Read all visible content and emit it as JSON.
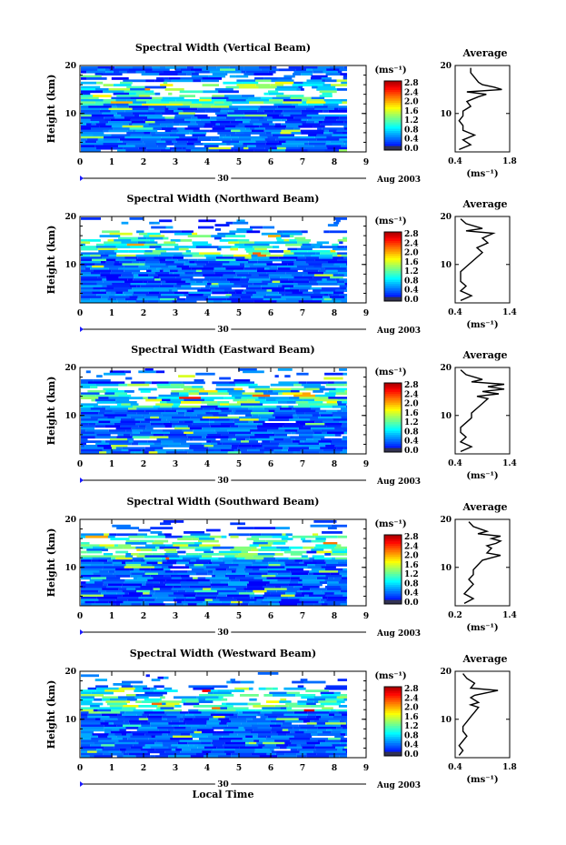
{
  "chart_data": [
    {
      "type": "heatmap",
      "title": "Spectral Width (Vertical Beam)",
      "ylabel": "Height (km)",
      "yticks": [
        "10",
        "20"
      ],
      "ylim": [
        2,
        20
      ],
      "xticks": [
        "0",
        "1",
        "2",
        "3",
        "4",
        "5",
        "6",
        "7",
        "8",
        "9"
      ],
      "xlim": [
        0,
        9
      ],
      "data_x_range": [
        0,
        8.4
      ],
      "date_day": "30",
      "date_month_year": "Aug 2003",
      "colorbar": {
        "label": "(ms⁻¹)",
        "ticks": [
          "0.0",
          "0.4",
          "0.8",
          "1.2",
          "1.6",
          "2.0",
          "2.4",
          "2.8"
        ],
        "range": [
          0,
          2.8
        ]
      },
      "average": {
        "title": "Average",
        "xlabel": "(ms⁻¹)",
        "xticks": [
          "0.4",
          "1.8"
        ],
        "xlim": [
          0.4,
          1.8
        ],
        "yticks": [
          "10",
          "20"
        ],
        "profile": [
          [
            0.5,
            2.5
          ],
          [
            0.8,
            3.5
          ],
          [
            0.6,
            4.5
          ],
          [
            0.9,
            5.5
          ],
          [
            0.6,
            6.5
          ],
          [
            0.6,
            7.5
          ],
          [
            0.5,
            8.5
          ],
          [
            0.6,
            9.5
          ],
          [
            0.6,
            10.5
          ],
          [
            0.8,
            11.5
          ],
          [
            0.7,
            12.5
          ],
          [
            1.0,
            13.5
          ],
          [
            1.2,
            14
          ],
          [
            0.7,
            14.5
          ],
          [
            1.6,
            15
          ],
          [
            1.4,
            15.5
          ],
          [
            1.1,
            16
          ],
          [
            1.0,
            16.5
          ],
          [
            0.9,
            17.5
          ],
          [
            0.8,
            18.5
          ],
          [
            0.8,
            19.5
          ]
        ]
      }
    },
    {
      "type": "heatmap",
      "title": "Spectral Width (Northward Beam)",
      "ylabel": "Height (km)",
      "yticks": [
        "10",
        "20"
      ],
      "ylim": [
        2,
        20
      ],
      "xticks": [
        "0",
        "1",
        "2",
        "3",
        "4",
        "5",
        "6",
        "7",
        "8",
        "9"
      ],
      "xlim": [
        0,
        9
      ],
      "data_x_range": [
        0,
        8.4
      ],
      "date_day": "30",
      "date_month_year": "Aug 2003",
      "colorbar": {
        "label": "(ms⁻¹)",
        "ticks": [
          "0.0",
          "0.4",
          "0.8",
          "1.2",
          "1.6",
          "2.0",
          "2.4",
          "2.8"
        ],
        "range": [
          0,
          2.8
        ]
      },
      "average": {
        "title": "Average",
        "xlabel": "(ms⁻¹)",
        "xticks": [
          "0.4",
          "1.4"
        ],
        "xlim": [
          0.4,
          1.4
        ],
        "yticks": [
          "10",
          "20"
        ],
        "profile": [
          [
            0.5,
            2.5
          ],
          [
            0.7,
            3.5
          ],
          [
            0.5,
            4.5
          ],
          [
            0.6,
            5.5
          ],
          [
            0.5,
            6.5
          ],
          [
            0.5,
            7.5
          ],
          [
            0.5,
            8.5
          ],
          [
            0.6,
            9.5
          ],
          [
            0.7,
            10.5
          ],
          [
            0.8,
            11.5
          ],
          [
            0.9,
            12.5
          ],
          [
            0.8,
            13.5
          ],
          [
            1.0,
            14.5
          ],
          [
            0.9,
            15.5
          ],
          [
            1.1,
            16.5
          ],
          [
            0.6,
            17
          ],
          [
            0.9,
            17.5
          ],
          [
            0.6,
            18.5
          ],
          [
            0.5,
            19.5
          ]
        ]
      }
    },
    {
      "type": "heatmap",
      "title": "Spectral Width (Eastward Beam)",
      "ylabel": "Height (km)",
      "yticks": [
        "10",
        "20"
      ],
      "ylim": [
        2,
        20
      ],
      "xticks": [
        "0",
        "1",
        "2",
        "3",
        "4",
        "5",
        "6",
        "7",
        "8",
        "9"
      ],
      "xlim": [
        0,
        9
      ],
      "data_x_range": [
        0,
        8.4
      ],
      "date_day": "30",
      "date_month_year": "Aug 2003",
      "colorbar": {
        "label": "(ms⁻¹)",
        "ticks": [
          "0.0",
          "0.4",
          "0.8",
          "1.2",
          "1.6",
          "2.0",
          "2.4",
          "2.8"
        ],
        "range": [
          0,
          2.8
        ]
      },
      "average": {
        "title": "Average",
        "xlabel": "(ms⁻¹)",
        "xticks": [
          "0.4",
          "1.4"
        ],
        "xlim": [
          0.4,
          1.4
        ],
        "yticks": [
          "10",
          "20"
        ],
        "profile": [
          [
            0.5,
            2.5
          ],
          [
            0.7,
            3.5
          ],
          [
            0.5,
            4.5
          ],
          [
            0.6,
            5.5
          ],
          [
            0.5,
            6.5
          ],
          [
            0.5,
            7.5
          ],
          [
            0.6,
            8.5
          ],
          [
            0.7,
            9.5
          ],
          [
            0.7,
            10.5
          ],
          [
            0.8,
            11.5
          ],
          [
            0.9,
            12.5
          ],
          [
            1.0,
            13.5
          ],
          [
            0.8,
            14
          ],
          [
            1.2,
            14.5
          ],
          [
            0.9,
            15
          ],
          [
            1.3,
            15.5
          ],
          [
            1.0,
            16
          ],
          [
            1.3,
            16.5
          ],
          [
            0.7,
            17
          ],
          [
            0.9,
            17.5
          ],
          [
            0.6,
            18.5
          ],
          [
            0.5,
            19.5
          ]
        ]
      }
    },
    {
      "type": "heatmap",
      "title": "Spectral Width (Southward Beam)",
      "ylabel": "Height (km)",
      "yticks": [
        "10",
        "20"
      ],
      "ylim": [
        2,
        20
      ],
      "xticks": [
        "0",
        "1",
        "2",
        "3",
        "4",
        "5",
        "6",
        "7",
        "8",
        "9"
      ],
      "xlim": [
        0,
        9
      ],
      "data_x_range": [
        0,
        8.4
      ],
      "date_day": "30",
      "date_month_year": "Aug 2003",
      "colorbar": {
        "label": "(ms⁻¹)",
        "ticks": [
          "0.0",
          "0.4",
          "0.8",
          "1.2",
          "1.6",
          "2.0",
          "2.4",
          "2.8"
        ],
        "range": [
          0,
          2.8
        ]
      },
      "average": {
        "title": "Average",
        "xlabel": "(ms⁻¹)",
        "xticks": [
          "0.2",
          "1.4"
        ],
        "xlim": [
          0.2,
          1.4
        ],
        "yticks": [
          "10",
          "20"
        ],
        "profile": [
          [
            0.4,
            2.5
          ],
          [
            0.6,
            3.5
          ],
          [
            0.4,
            4.5
          ],
          [
            0.5,
            5.5
          ],
          [
            0.6,
            6.5
          ],
          [
            0.5,
            7.5
          ],
          [
            0.6,
            8.5
          ],
          [
            0.6,
            9.5
          ],
          [
            0.7,
            10.5
          ],
          [
            0.8,
            11.5
          ],
          [
            1.0,
            12
          ],
          [
            1.2,
            12.5
          ],
          [
            0.9,
            13
          ],
          [
            1.0,
            14
          ],
          [
            0.9,
            14.5
          ],
          [
            1.1,
            15
          ],
          [
            1.2,
            15.5
          ],
          [
            1.0,
            16
          ],
          [
            1.2,
            16.5
          ],
          [
            0.7,
            17
          ],
          [
            0.9,
            17.5
          ],
          [
            0.6,
            18.5
          ],
          [
            0.5,
            19.5
          ]
        ]
      }
    },
    {
      "type": "heatmap",
      "title": "Spectral Width (Westward Beam)",
      "ylabel": "Height (km)",
      "yticks": [
        "10",
        "20"
      ],
      "ylim": [
        2,
        20
      ],
      "xticks": [
        "0",
        "1",
        "2",
        "3",
        "4",
        "5",
        "6",
        "7",
        "8",
        "9"
      ],
      "xlim": [
        0,
        9
      ],
      "data_x_range": [
        0,
        8.4
      ],
      "date_day": "30",
      "date_month_year": "Aug 2003",
      "xlabel": "Local Time",
      "colorbar": {
        "label": "(ms⁻¹)",
        "ticks": [
          "0.0",
          "0.4",
          "0.8",
          "1.2",
          "1.6",
          "2.0",
          "2.4",
          "2.8"
        ],
        "range": [
          0,
          2.8
        ]
      },
      "average": {
        "title": "Average",
        "xlabel": "(ms⁻¹)",
        "xticks": [
          "0.4",
          "1.8"
        ],
        "xlim": [
          0.4,
          1.8
        ],
        "yticks": [
          "10",
          "20"
        ],
        "profile": [
          [
            0.5,
            2.5
          ],
          [
            0.6,
            3.5
          ],
          [
            0.5,
            4.5
          ],
          [
            0.6,
            5.5
          ],
          [
            0.7,
            6.5
          ],
          [
            0.6,
            7.5
          ],
          [
            0.6,
            8.5
          ],
          [
            0.7,
            9.5
          ],
          [
            0.8,
            10.5
          ],
          [
            0.9,
            11.5
          ],
          [
            1.0,
            12.5
          ],
          [
            0.8,
            13
          ],
          [
            1.0,
            13.5
          ],
          [
            0.8,
            14.5
          ],
          [
            0.9,
            15
          ],
          [
            1.5,
            16
          ],
          [
            0.8,
            16.5
          ],
          [
            0.9,
            17.5
          ],
          [
            0.7,
            18.5
          ],
          [
            0.6,
            19.5
          ]
        ]
      }
    }
  ]
}
